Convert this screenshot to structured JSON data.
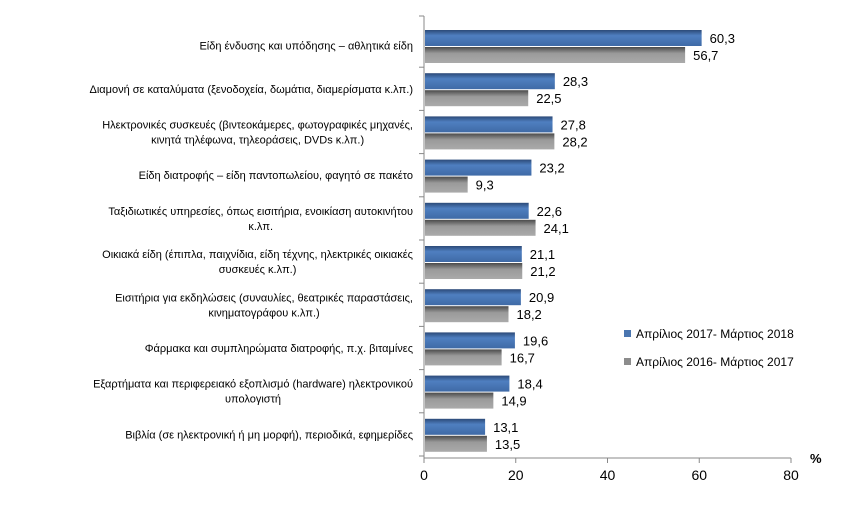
{
  "chart_data": {
    "type": "bar",
    "orientation": "horizontal",
    "categories": [
      [
        "Είδη ένδυσης και υπόδησης – αθλητικά είδη"
      ],
      [
        "Διαμονή σε καταλύματα (ξενοδοχεία, δωμάτια, διαμερίσματα κ.λπ.)"
      ],
      [
        "Ηλεκτρονικές συσκευές (βιντεοκάμερες, φωτογραφικές μηχανές,",
        "κινητά τηλέφωνα, τηλεοράσεις, DVDs κ.λπ.)"
      ],
      [
        "Είδη διατροφής – είδη παντοπωλείου, φαγητό σε πακέτο"
      ],
      [
        "Ταξιδιωτικές υπηρεσίες, όπως εισιτήρια, ενοικίαση αυτοκινήτου",
        "κ.λπ."
      ],
      [
        "Οικιακά είδη (έπιπλα, παιχνίδια, είδη τέχνης, ηλεκτρικές οικιακές",
        "συσκευές  κ.λπ.)"
      ],
      [
        "Εισιτήρια για εκδηλώσεις (συναυλίες, θεατρικές παραστάσεις,",
        "κινηματογράφου κ.λπ.)"
      ],
      [
        "Φάρμακα και συμπληρώματα διατροφής,  π.χ. βιταμίνες"
      ],
      [
        "Εξαρτήματα και περιφερειακό εξοπλισμό (hardware) ηλεκτρονικού",
        "υπολογιστή"
      ],
      [
        "Βιβλία (σε ηλεκτρονική ή μη μορφή), περιοδικά, εφημερίδες"
      ]
    ],
    "series": [
      {
        "name": "Απρίλιος 2017- Μάρτιος 2018",
        "color": "#4a76b0",
        "values": [
          60.3,
          28.3,
          27.8,
          23.2,
          22.6,
          21.1,
          20.9,
          19.6,
          18.4,
          13.1
        ],
        "labels": [
          "60,3",
          "28,3",
          "27,8",
          "23,2",
          "22,6",
          "21,1",
          "20,9",
          "19,6",
          "18,4",
          "13,1"
        ]
      },
      {
        "name": "Απρίλιος 2016- Μάρτιος 2017",
        "color": "#8c8c8c",
        "values": [
          56.7,
          22.5,
          28.2,
          9.3,
          24.1,
          21.2,
          18.2,
          16.7,
          14.9,
          13.5
        ],
        "labels": [
          "56,7",
          "22,5",
          "28,2",
          "9,3",
          "24,1",
          "21,2",
          "18,2",
          "16,7",
          "14,9",
          "13,5"
        ]
      }
    ],
    "xlim": [
      0,
      80
    ],
    "xticks": [
      "0",
      "20",
      "40",
      "60",
      "80"
    ],
    "xlabel": "%",
    "grid": false,
    "legend": "right"
  }
}
